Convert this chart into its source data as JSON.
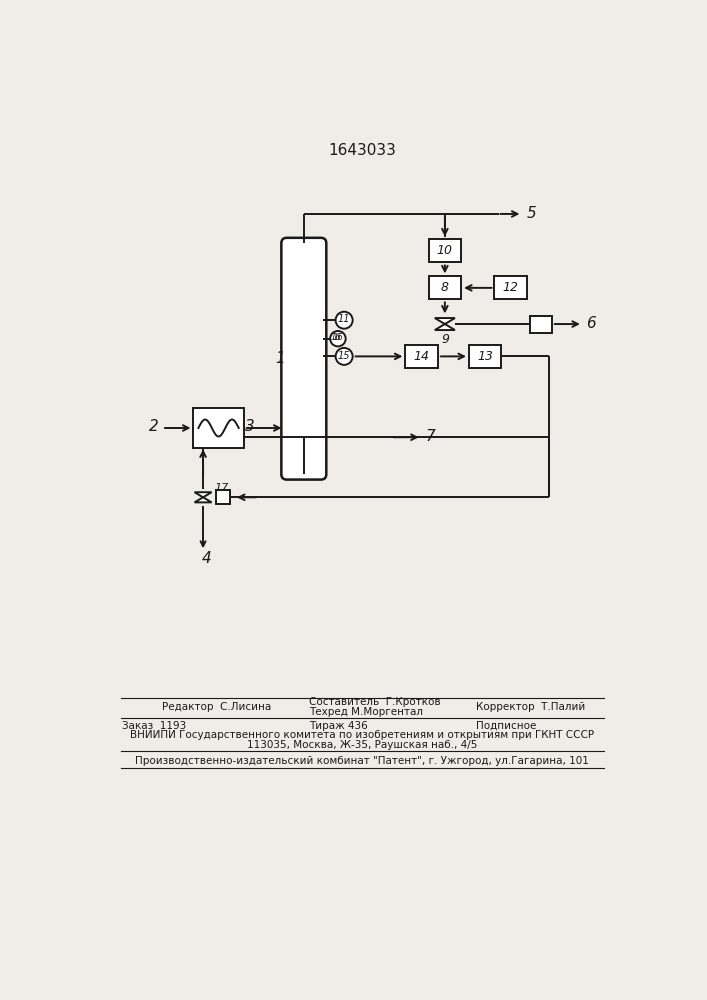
{
  "title": "1643033",
  "bg_color": "#f0ede8",
  "line_color": "#1a1a1a",
  "footer": {
    "editor": "Редактор  С.Лисина",
    "composer": "Составитель  Г.Кротков",
    "techred": "Техред М.Моргентал",
    "corrector": "Корректор  Т.Палий",
    "order": "Заказ  1193",
    "print": "Тираж 436",
    "subscription": "Подписное",
    "vniip1": "ВНИИПИ Государственного комитета по изобретениям и открытиям при ГКНТ СССР",
    "vniip2": "113035, Москва, Ж-35, Раушская наб., 4/5",
    "factory": "Производственно-издательский комбинат \"Патент\", г. Ужгород, ул.Гагарина, 101"
  }
}
